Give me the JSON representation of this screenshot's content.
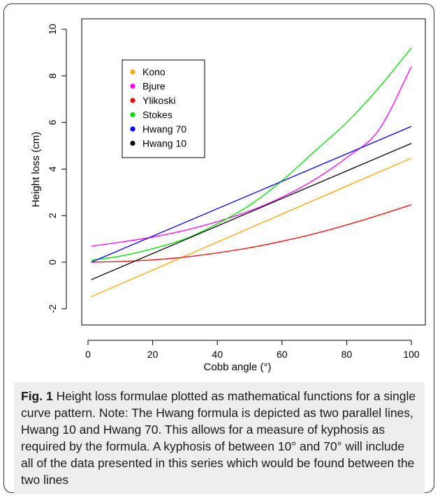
{
  "chart_data": {
    "type": "line",
    "xlabel": "Cobb angle (°)",
    "ylabel": "Height loss (cm)",
    "xlim": [
      0,
      100
    ],
    "ylim": [
      -2.6,
      10.3
    ],
    "x_ticks": [
      0,
      20,
      40,
      60,
      80,
      100
    ],
    "y_ticks": [
      -2,
      0,
      2,
      4,
      6,
      8,
      10
    ],
    "legend_position": "top-left",
    "grid": false,
    "series": [
      {
        "name": "Kono",
        "color": "#FFA500",
        "x": [
          1,
          100
        ],
        "y": [
          -1.48,
          4.47
        ]
      },
      {
        "name": "Bjure",
        "color": "#FF00FF",
        "x": [
          1,
          10,
          20,
          30,
          40,
          50,
          60,
          70,
          80,
          90,
          100
        ],
        "y": [
          0.69,
          0.86,
          1.08,
          1.37,
          1.74,
          2.2,
          2.79,
          3.54,
          4.49,
          5.69,
          8.4
        ]
      },
      {
        "name": "Ylikoski",
        "color": "#FF0000",
        "x": [
          1,
          10,
          20,
          30,
          40,
          50,
          60,
          70,
          80,
          90,
          100
        ],
        "y": [
          0.0,
          0.03,
          0.1,
          0.22,
          0.4,
          0.62,
          0.9,
          1.22,
          1.6,
          2.02,
          2.47
        ]
      },
      {
        "name": "Stokes",
        "color": "#00DD00",
        "x": [
          1,
          10,
          20,
          30,
          40,
          50,
          60,
          70,
          80,
          90,
          100
        ],
        "y": [
          0.09,
          0.26,
          0.58,
          1.0,
          1.65,
          2.45,
          3.5,
          4.75,
          6.0,
          7.5,
          9.2
        ]
      },
      {
        "name": "Hwang 70",
        "color": "#0000FF",
        "x": [
          1,
          100
        ],
        "y": [
          0.0,
          5.83
        ]
      },
      {
        "name": "Hwang 10",
        "color": "#000000",
        "x": [
          1,
          100
        ],
        "y": [
          -0.75,
          5.1
        ]
      }
    ]
  },
  "caption": {
    "label": "Fig. 1",
    "text": " Height loss formulae plotted as mathematical functions for a single curve pattern. Note: The Hwang formula is depicted as two parallel lines, Hwang 10 and Hwang 70. This allows for a measure of kyphosis as required by the formula. A kyphosis of between 10° and 70° will include all of the data presented in this series which would be found between the two lines"
  }
}
